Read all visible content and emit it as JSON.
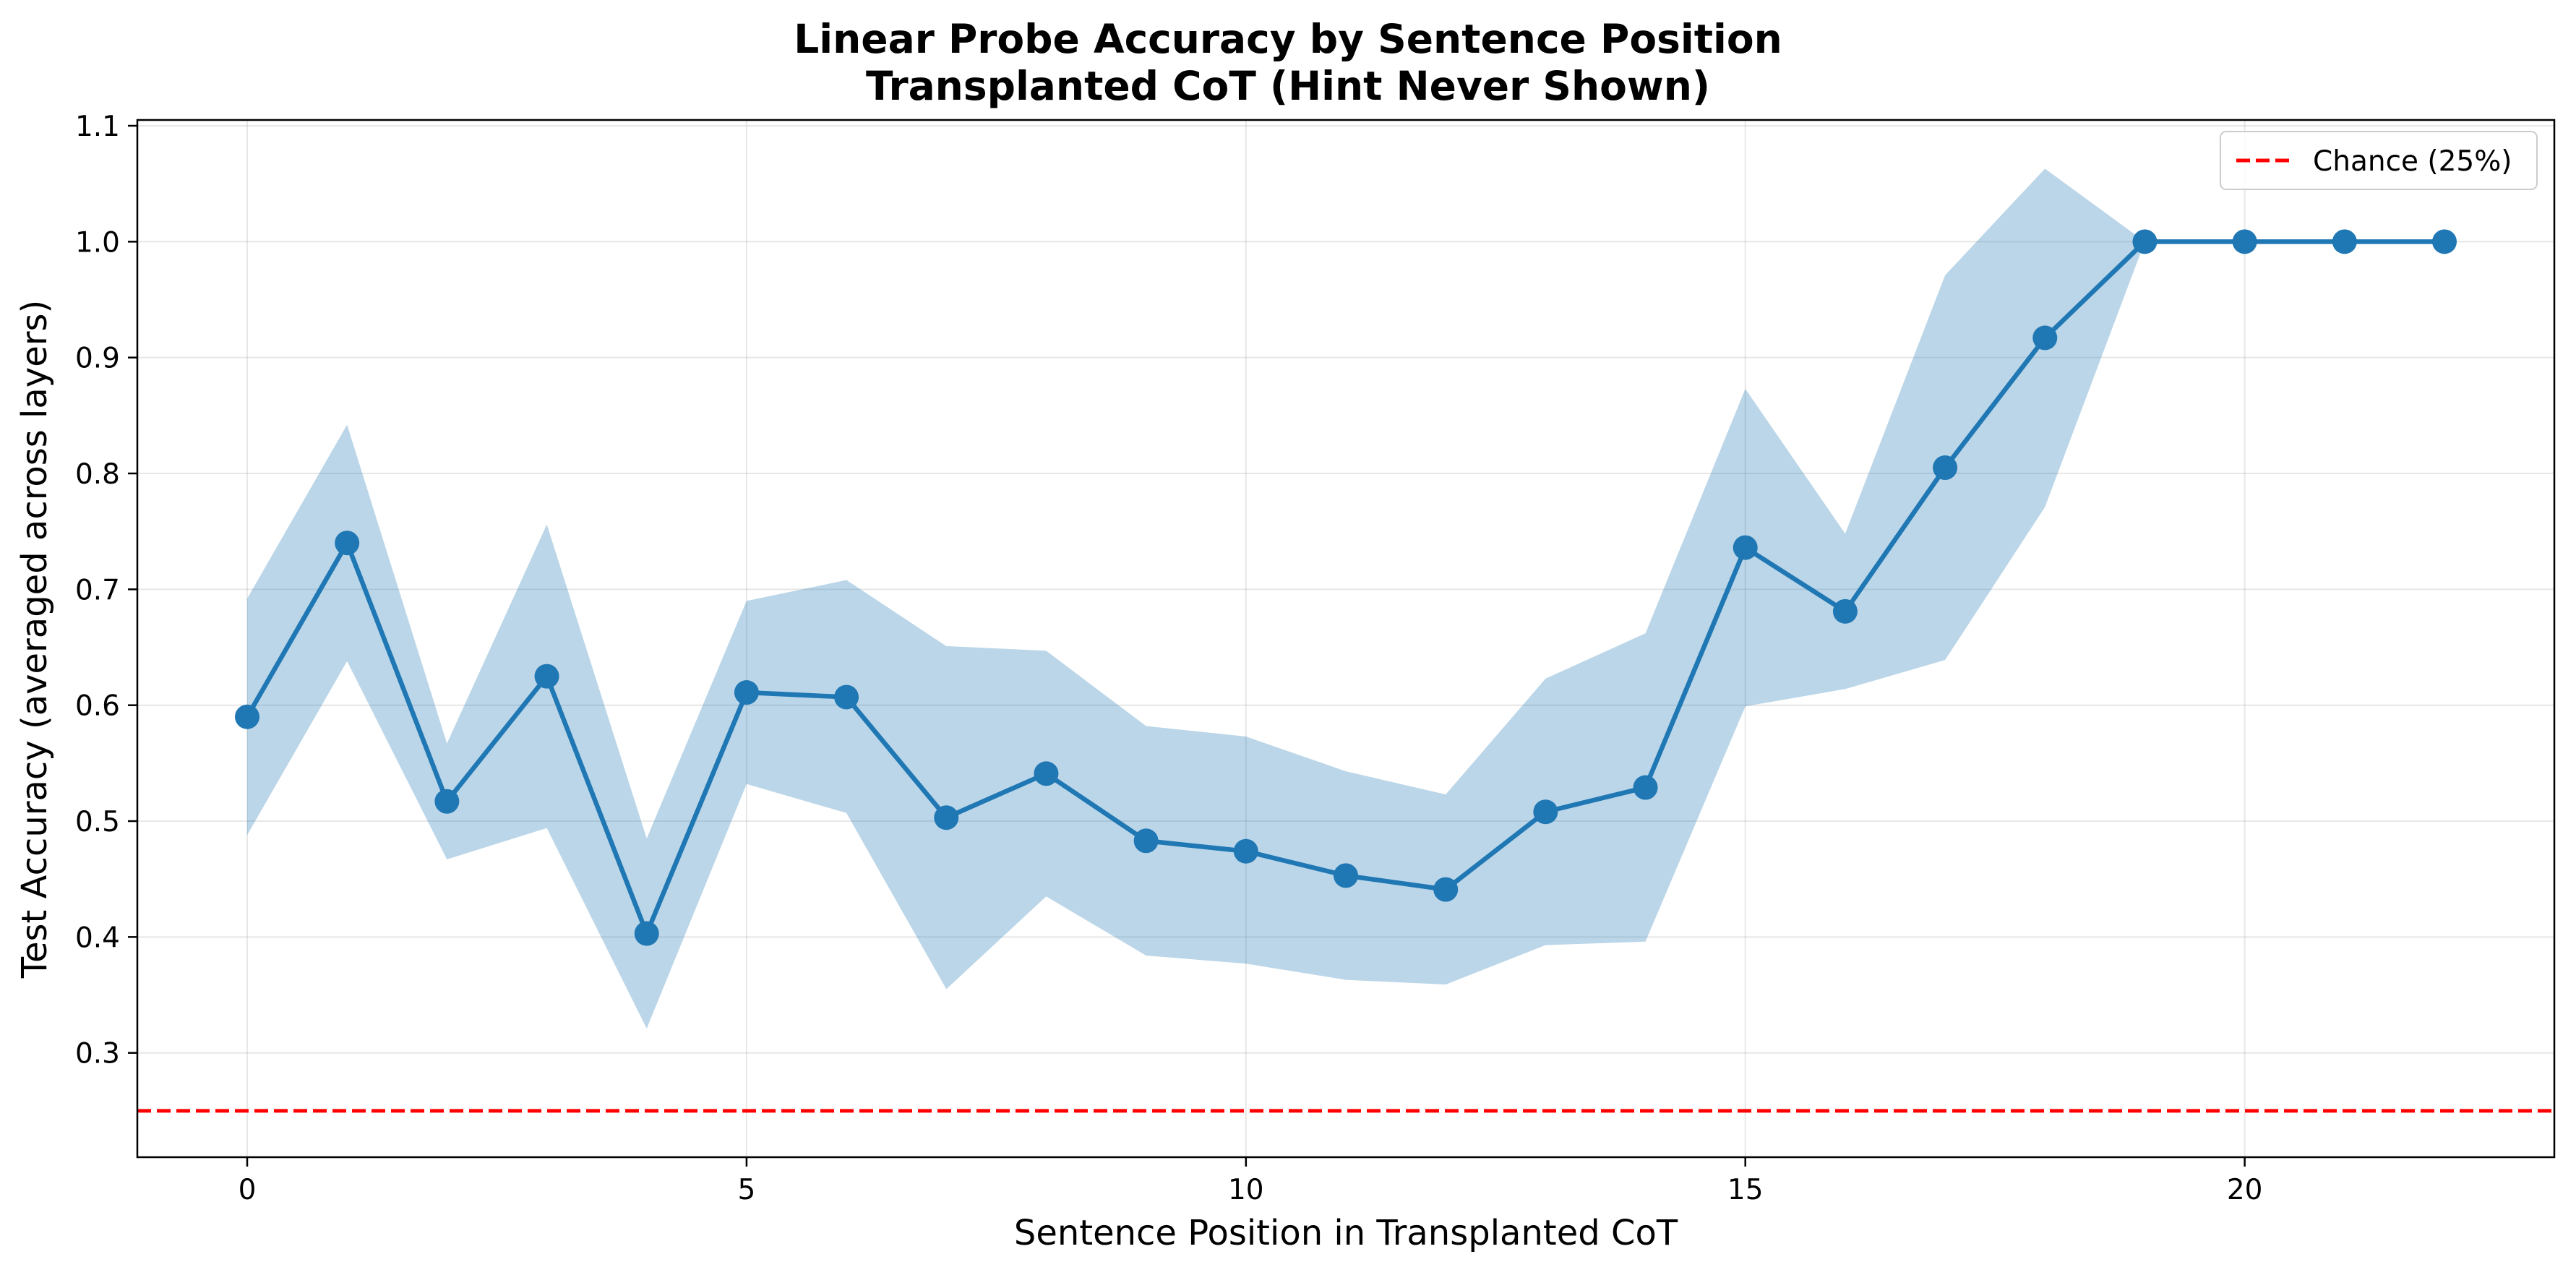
{
  "chart_data": {
    "type": "line",
    "title": "Linear Probe Accuracy by Sentence Position",
    "subtitle": "Transplanted CoT (Hint Never Shown)",
    "xlabel": "Sentence Position in Transplanted CoT",
    "ylabel": "Test Accuracy (averaged across layers)",
    "xlim": [
      -1.1,
      23.1
    ],
    "ylim": [
      0.21,
      1.105
    ],
    "x_ticks": [
      0,
      5,
      10,
      15,
      20
    ],
    "y_ticks": [
      0.3,
      0.4,
      0.5,
      0.6,
      0.7,
      0.8,
      0.9,
      1.0,
      1.1
    ],
    "x_tick_labels": [
      "0",
      "5",
      "10",
      "15",
      "20"
    ],
    "y_tick_labels": [
      "0.3",
      "0.4",
      "0.5",
      "0.6",
      "0.7",
      "0.8",
      "0.9",
      "1.0",
      "1.1"
    ],
    "grid": true,
    "legend_placement": "top-right",
    "series": [
      {
        "color": "#1f77b4",
        "marker": "circle",
        "x": [
          0,
          1,
          2,
          3,
          4,
          5,
          6,
          7,
          8,
          9,
          10,
          11,
          12,
          13,
          14,
          15,
          16,
          17,
          18,
          19,
          20,
          21,
          22
        ],
        "y": [
          0.59,
          0.74,
          0.517,
          0.625,
          0.403,
          0.611,
          0.607,
          0.503,
          0.541,
          0.483,
          0.474,
          0.453,
          0.441,
          0.508,
          0.529,
          0.736,
          0.681,
          0.805,
          0.917,
          1.0,
          1.0,
          1.0,
          1.0
        ],
        "band_upper": [
          0.692,
          0.842,
          0.567,
          0.756,
          0.485,
          0.69,
          0.708,
          0.651,
          0.647,
          0.582,
          0.573,
          0.543,
          0.523,
          0.623,
          0.662,
          0.873,
          0.748,
          0.971,
          1.063,
          1.0,
          1.0,
          1.0,
          1.0
        ],
        "band_lower": [
          0.488,
          0.638,
          0.467,
          0.494,
          0.321,
          0.532,
          0.507,
          0.355,
          0.435,
          0.384,
          0.377,
          0.363,
          0.359,
          0.393,
          0.396,
          0.599,
          0.614,
          0.639,
          0.771,
          1.0,
          1.0,
          1.0,
          1.0
        ],
        "band_color": "#1f77b4",
        "band_opacity": 0.3
      }
    ],
    "reference_lines": [
      {
        "name": "Chance (25%)",
        "y": 0.25,
        "color": "#ff0000",
        "style": "dashed"
      }
    ],
    "colors": {
      "series": "#1f77b4",
      "chance": "#ff0000",
      "grid": "#b0b0b0"
    }
  }
}
